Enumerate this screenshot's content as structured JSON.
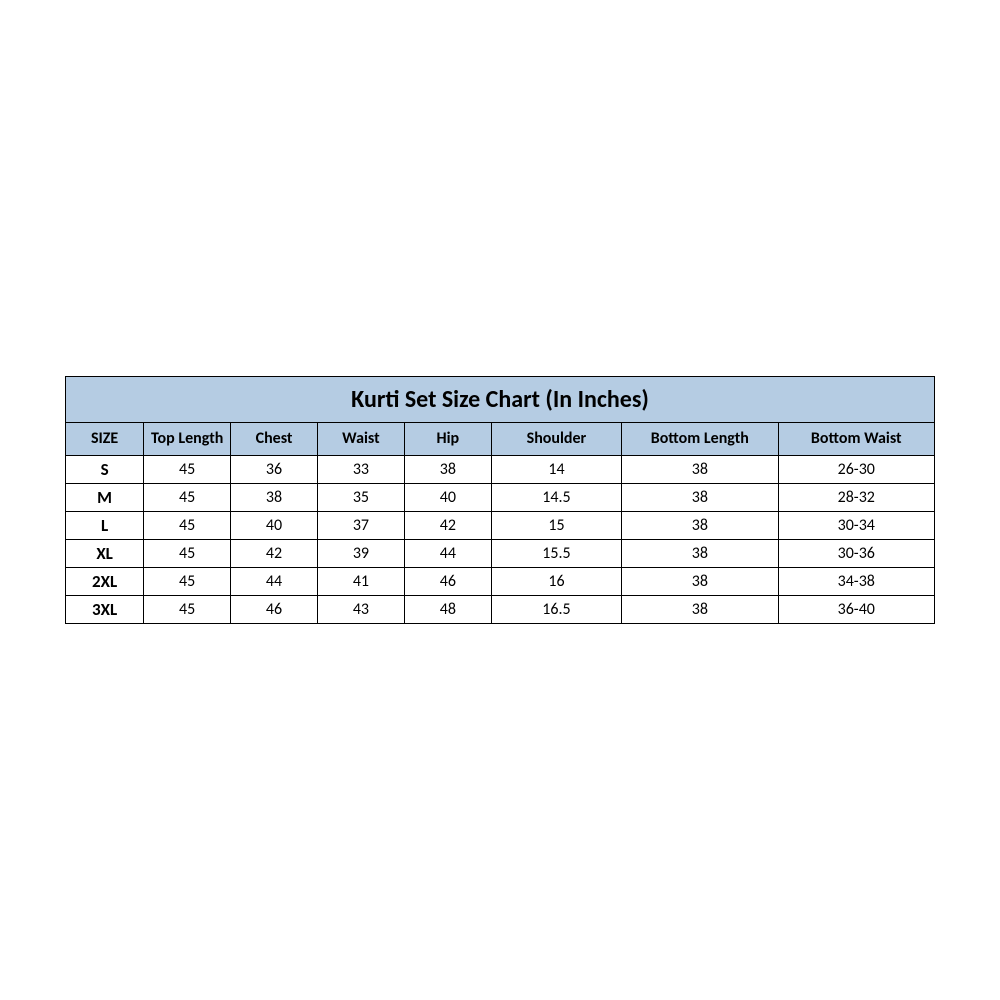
{
  "table": {
    "title": "Kurti Set Size Chart (In Inches)",
    "header_bg": "#b5cce3",
    "border_color": "#000000",
    "title_fontsize": 24,
    "header_fontsize": 16,
    "body_fontsize": 16,
    "columns": [
      "SIZE",
      "Top Length",
      "Chest",
      "Waist",
      "Hip",
      "Shoulder",
      "Bottom Length",
      "Bottom Waist"
    ],
    "rows": [
      [
        "S",
        "45",
        "36",
        "33",
        "38",
        "14",
        "38",
        "26-30"
      ],
      [
        "M",
        "45",
        "38",
        "35",
        "40",
        "14.5",
        "38",
        "28-32"
      ],
      [
        "L",
        "45",
        "40",
        "37",
        "42",
        "15",
        "38",
        "30-34"
      ],
      [
        "XL",
        "45",
        "42",
        "39",
        "44",
        "15.5",
        "38",
        "30-36"
      ],
      [
        "2XL",
        "45",
        "44",
        "41",
        "46",
        "16",
        "38",
        "34-38"
      ],
      [
        "3XL",
        "45",
        "46",
        "43",
        "48",
        "16.5",
        "38",
        "36-40"
      ]
    ]
  }
}
